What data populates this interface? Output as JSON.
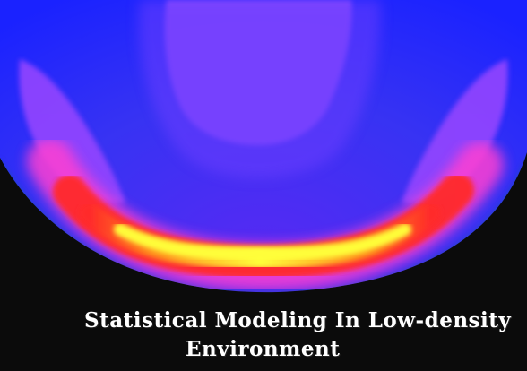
{
  "caption": {
    "line1": "Statistical Modeling In Low-density",
    "line2": "Environment"
  },
  "colors": {
    "background": "#0b0b0b",
    "deep_blue": "#0d2fe6",
    "blue": "#3a35ff",
    "violet": "#7a3cff",
    "light_violet": "#9a46ff",
    "magenta": "#ff3fd2",
    "red": "#ff2a2a",
    "orange": "#ff8a1a",
    "yellow": "#ffff3a",
    "teal_dark": "#0b6f6a"
  }
}
